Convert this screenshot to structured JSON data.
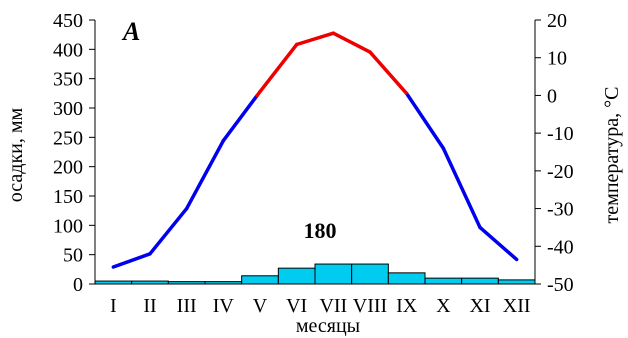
{
  "chart_data": {
    "type": "bar+line",
    "panel_label": "A",
    "annotation": "180",
    "xlabel": "месяцы",
    "ylabel_left": "осадки, мм",
    "ylabel_right": "температура, °C",
    "categories": [
      "I",
      "II",
      "III",
      "IV",
      "V",
      "VI",
      "VII",
      "VIII",
      "IX",
      "X",
      "XI",
      "XII"
    ],
    "precipitation": {
      "values": [
        5,
        5,
        4,
        4,
        14,
        27,
        34,
        34,
        19,
        10,
        10,
        7
      ],
      "color": "#00ccf0",
      "ylim": [
        0,
        450
      ],
      "ticks": [
        0,
        50,
        100,
        150,
        200,
        250,
        300,
        350,
        400,
        450
      ]
    },
    "temperature": {
      "values": [
        -45.5,
        -42,
        -30,
        -12,
        1,
        13.5,
        16.5,
        11.5,
        0.5,
        -14,
        -35,
        -43.5
      ],
      "color_positive": "#ee0000",
      "color_negative": "#0000ee",
      "ylim": [
        -50,
        20
      ],
      "ticks": [
        -50,
        -40,
        -30,
        -20,
        -10,
        0,
        10,
        20
      ]
    }
  }
}
